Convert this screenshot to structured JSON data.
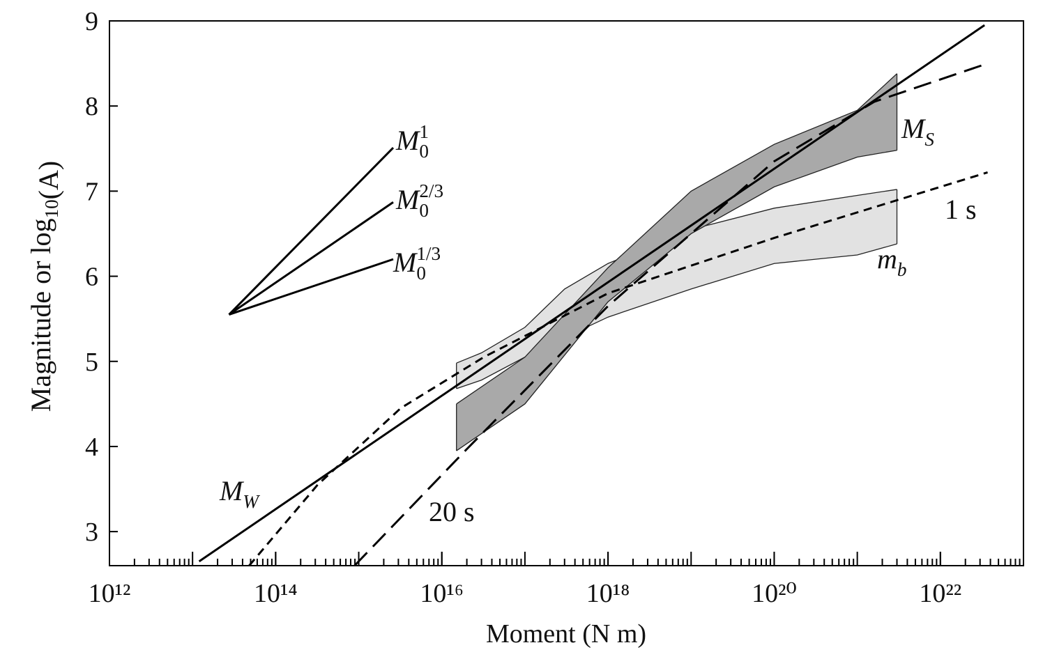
{
  "chart_data": {
    "type": "line",
    "xscale": "log",
    "xlabel": "Moment (N m)",
    "ylabel": {
      "base": "Magnitude or log",
      "sub": "10",
      "tail": "(A)"
    },
    "xlim": [
      1000000000000.0,
      1e+23
    ],
    "ylim": [
      2.6,
      9
    ],
    "xticks": [
      {
        "value": 1000000000000.0,
        "label": "10¹²"
      },
      {
        "value": 100000000000000.0,
        "label": "10¹⁴"
      },
      {
        "value": 1e+16,
        "label": "10¹⁶"
      },
      {
        "value": 1e+18,
        "label": "10¹⁸"
      },
      {
        "value": 1e+20,
        "label": "10²⁰"
      },
      {
        "value": 1e+22,
        "label": "10²²"
      }
    ],
    "yticks": [
      3,
      4,
      5,
      6,
      7,
      8,
      9
    ],
    "series": [
      {
        "label": {
          "base": "M",
          "sub": "W"
        },
        "color": "#000000",
        "dash": "solid",
        "x": [
          12000000000000.0,
          3.4e+22
        ],
        "values": [
          2.65,
          8.95
        ]
      },
      {
        "label": {
          "base": "1 s"
        },
        "color": "#000000",
        "dash": "short",
        "x": [
          48000000000000.0,
          320000000000000.0,
          3200000000000000.0,
          3.2e+16,
          1e+18,
          1e+20,
          3.7e+22
        ],
        "values": [
          2.6,
          3.55,
          4.45,
          5.05,
          5.8,
          6.45,
          7.22
        ]
      },
      {
        "label": {
          "base": "20 s"
        },
        "color": "#000000",
        "dash": "long",
        "x": [
          890000000000000.0,
          2e+16,
          1e+18,
          1e+20,
          1.6e+21,
          3.7e+22
        ],
        "values": [
          2.6,
          3.97,
          5.65,
          7.35,
          8.05,
          8.5
        ]
      }
    ],
    "bands": [
      {
        "label": {
          "base": "m",
          "sub": "b"
        },
        "color": "#e2e2e2",
        "x": [
          1.5e+16,
          3e+16,
          1e+17,
          3e+17,
          1e+18,
          1e+19,
          1e+20,
          1e+21,
          3e+21
        ],
        "upper": [
          4.98,
          5.1,
          5.4,
          5.85,
          6.15,
          6.55,
          6.8,
          6.95,
          7.02
        ],
        "lower": [
          4.68,
          4.78,
          5.05,
          5.28,
          5.52,
          5.85,
          6.15,
          6.25,
          6.38
        ]
      },
      {
        "label": {
          "base": "M",
          "sub": "S"
        },
        "color": "#a9a9a9",
        "x": [
          1.5e+16,
          1e+17,
          1e+18,
          1e+19,
          1e+20,
          1e+21,
          3e+21
        ],
        "upper": [
          4.5,
          5.05,
          6.1,
          7.0,
          7.55,
          7.95,
          8.38
        ],
        "lower": [
          3.95,
          4.5,
          5.7,
          6.5,
          7.05,
          7.4,
          7.48
        ]
      }
    ],
    "guides": [
      {
        "label": {
          "base": "M",
          "sub": "0",
          "sup": "1"
        },
        "x": [
          27500000000000.0,
          2600000000000000.0
        ],
        "values": [
          5.55,
          7.51
        ]
      },
      {
        "label": {
          "base": "M",
          "sub": "0",
          "sup": "2/3"
        },
        "x": [
          27500000000000.0,
          2600000000000000.0
        ],
        "values": [
          5.55,
          6.87
        ]
      },
      {
        "label": {
          "base": "M",
          "sub": "0",
          "sup": "1/3"
        },
        "x": [
          27500000000000.0,
          2600000000000000.0
        ],
        "values": [
          5.55,
          6.2
        ]
      }
    ]
  }
}
